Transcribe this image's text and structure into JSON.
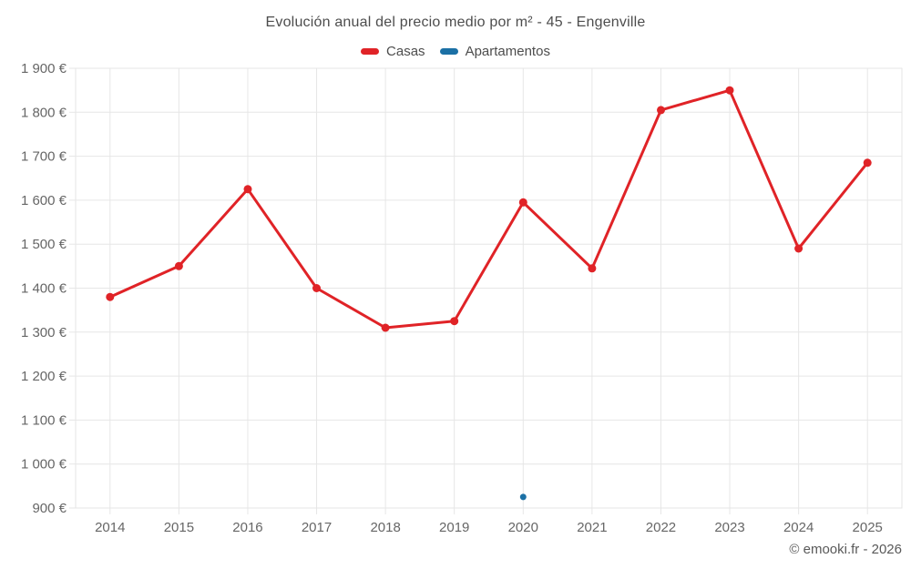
{
  "title": "Evolución anual del precio medio por m² - 45 - Engenville",
  "legend": [
    {
      "label": "Casas",
      "color": "#e02327"
    },
    {
      "label": "Apartamentos",
      "color": "#1b70a5"
    }
  ],
  "footer": {
    "copyright": "© emooki.fr - 2026"
  },
  "chart_data": {
    "type": "line",
    "title": "Evolución anual del precio medio por m² - 45 - Engenville",
    "categories": [
      "2014",
      "2015",
      "2016",
      "2017",
      "2018",
      "2019",
      "2020",
      "2021",
      "2022",
      "2023",
      "2024",
      "2025"
    ],
    "series": [
      {
        "name": "Casas",
        "color": "#e02327",
        "values": [
          1380,
          1450,
          1625,
          1400,
          1310,
          1325,
          1595,
          1445,
          1805,
          1850,
          1490,
          1685
        ]
      },
      {
        "name": "Apartamentos",
        "color": "#1b70a5",
        "values": [
          null,
          null,
          null,
          null,
          null,
          null,
          925,
          null,
          null,
          null,
          null,
          null
        ]
      }
    ],
    "xlabel": "",
    "ylabel": "",
    "ylim": [
      900,
      1900
    ],
    "ytick_step": 100,
    "ytick_suffix": " €",
    "grid": true,
    "legend_position": "top"
  }
}
